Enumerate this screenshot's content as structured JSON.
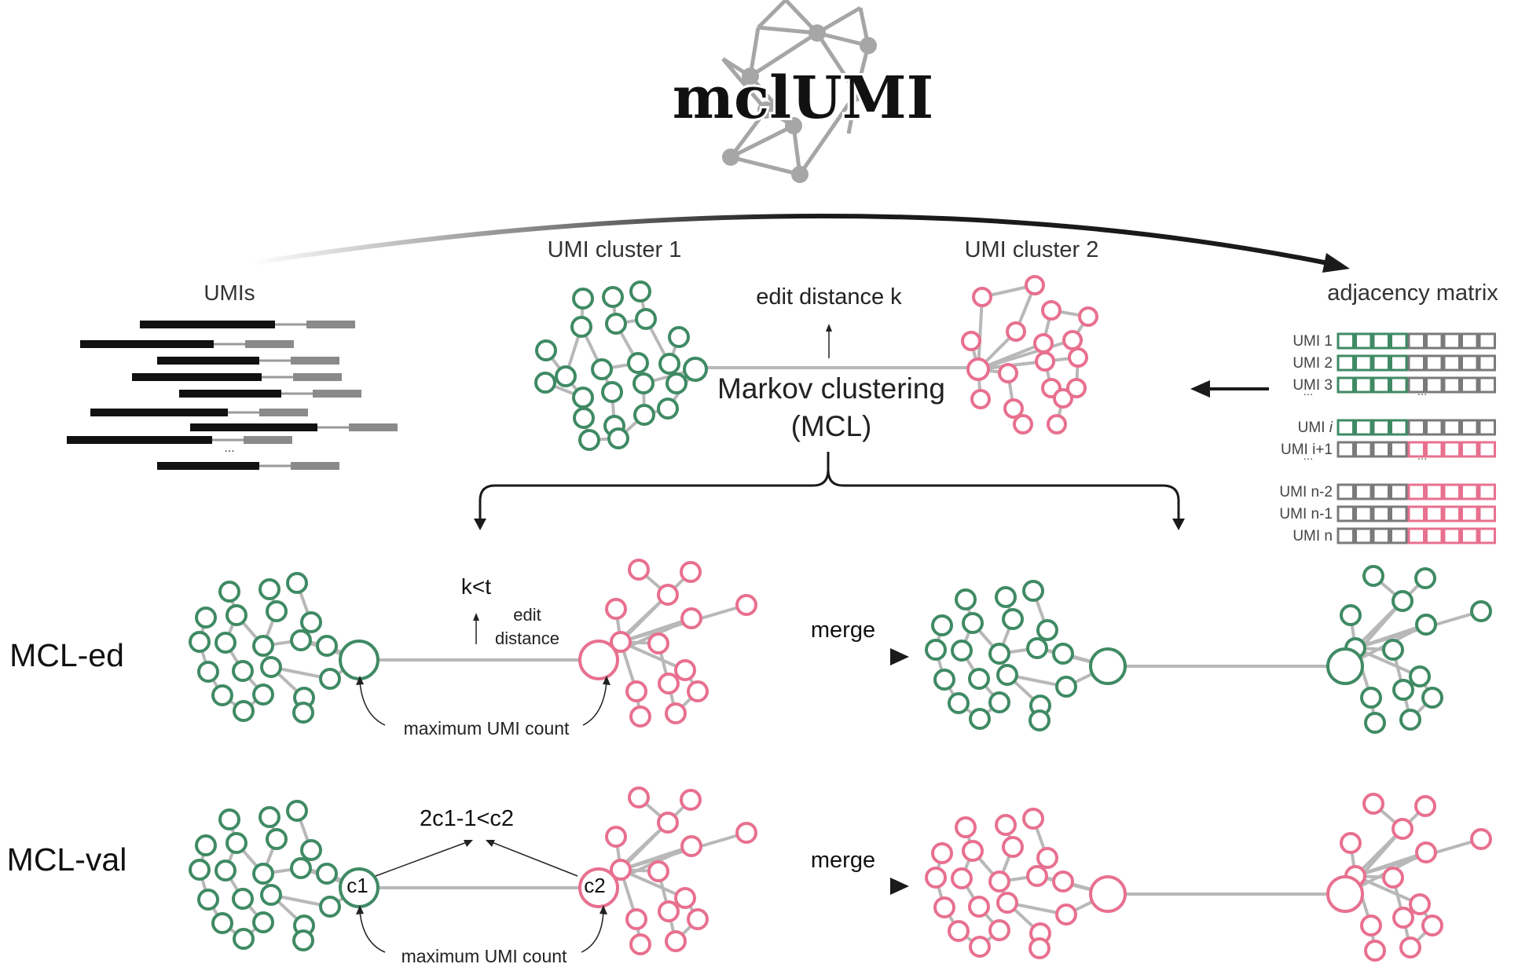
{
  "logo": {
    "text": "mclUMI"
  },
  "colors": {
    "green": "#3f8a64",
    "pink": "#e8708f",
    "gray": "#b8b8b8",
    "dark": "#1a1a1a",
    "matrix_gray": "#7a7a7a"
  },
  "labels": {
    "umis": "UMIs",
    "ellipsis": "...",
    "cluster1": "UMI cluster 1",
    "cluster2": "UMI cluster 2",
    "edit_distance_k": "edit distance k",
    "mcl_line1": "Markov clustering",
    "mcl_line2": "(MCL)",
    "adjacency_matrix": "adjacency matrix",
    "mcl_ed": "MCL-ed",
    "mcl_val": "MCL-val",
    "k_lt_t": "k<t",
    "edit_line1": "edit",
    "edit_line2": "distance",
    "max_umi_count": "maximum UMI count",
    "merge": "merge",
    "formula": "2c1-1<c2",
    "c1": "c1",
    "c2": "c2"
  },
  "matrix": {
    "rows": [
      {
        "label": "UMI 1",
        "italic": "",
        "pattern": "GGGGXXXXX"
      },
      {
        "label": "UMI 2",
        "italic": "",
        "pattern": "GGGGXXXXX"
      },
      {
        "label": "UMI 3",
        "italic": "",
        "pattern": "GGGGXXXXX"
      },
      {
        "label": "...",
        "italic": "",
        "pattern": ""
      },
      {
        "label": "UMI ",
        "italic": "i",
        "pattern": "GGGGXXXXX"
      },
      {
        "label": "UMI i+1",
        "italic": "",
        "pattern": "XXXXPPPPP"
      },
      {
        "label": "...",
        "italic": "",
        "pattern": ""
      },
      {
        "label": "UMI n-2",
        "italic": "",
        "pattern": "XXXXPPPPP"
      },
      {
        "label": "UMI n-1",
        "italic": "",
        "pattern": "XXXXPPPPP"
      },
      {
        "label": "UMI n",
        "italic": "",
        "pattern": "XXXXPPPPP"
      }
    ]
  }
}
